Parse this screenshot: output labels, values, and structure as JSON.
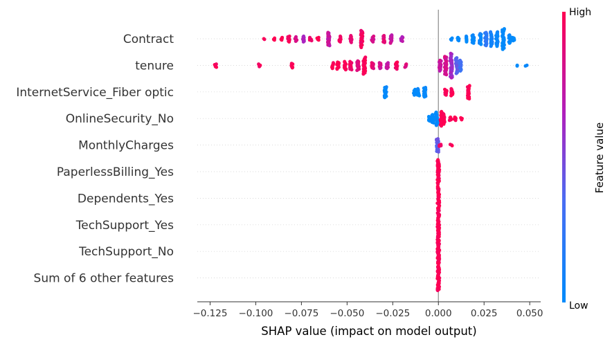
{
  "chart_data": {
    "type": "scatter",
    "subtype": "shap-beeswarm",
    "xlabel": "SHAP value (impact on model output)",
    "xlim": [
      -0.132,
      0.056
    ],
    "xticks": [
      -0.125,
      -0.1,
      -0.075,
      -0.05,
      -0.025,
      0.0,
      0.025,
      0.05
    ],
    "xtick_labels": [
      "−0.125",
      "−0.100",
      "−0.075",
      "−0.050",
      "−0.025",
      "0.000",
      "0.025",
      "0.050"
    ],
    "features": [
      "Contract",
      "tenure",
      "InternetService_Fiber optic",
      "OnlineSecurity_No",
      "MonthlyCharges",
      "PaperlessBilling_Yes",
      "Dependents_Yes",
      "TechSupport_Yes",
      "TechSupport_No",
      "Sum of 6 other features"
    ],
    "colorbar": {
      "title": "Feature value",
      "high_label": "High",
      "low_label": "Low"
    },
    "colors": {
      "low": "#008bfb",
      "high": "#ff0052",
      "baseline": "#999999",
      "grid": "#cccccc"
    },
    "point_groups": [
      {
        "feature": "Contract",
        "x": -0.095,
        "n": 2,
        "v": 1.0
      },
      {
        "feature": "Contract",
        "x": -0.09,
        "n": 4,
        "v": 1.0
      },
      {
        "feature": "Contract",
        "x": -0.086,
        "n": 5,
        "v": 1.0
      },
      {
        "feature": "Contract",
        "x": -0.082,
        "n": 10,
        "v": 0.95
      },
      {
        "feature": "Contract",
        "x": -0.078,
        "n": 8,
        "v": 0.85
      },
      {
        "feature": "Contract",
        "x": -0.074,
        "n": 10,
        "v": 0.65
      },
      {
        "feature": "Contract",
        "x": -0.07,
        "n": 6,
        "v": 0.95
      },
      {
        "feature": "Contract",
        "x": -0.066,
        "n": 5,
        "v": 1.0
      },
      {
        "feature": "Contract",
        "x": -0.06,
        "n": 22,
        "v": 0.75
      },
      {
        "feature": "Contract",
        "x": -0.054,
        "n": 10,
        "v": 0.95
      },
      {
        "feature": "Contract",
        "x": -0.048,
        "n": 12,
        "v": 0.9
      },
      {
        "feature": "Contract",
        "x": -0.042,
        "n": 28,
        "v": 0.95
      },
      {
        "feature": "Contract",
        "x": -0.036,
        "n": 10,
        "v": 0.8
      },
      {
        "feature": "Contract",
        "x": -0.03,
        "n": 12,
        "v": 0.85
      },
      {
        "feature": "Contract",
        "x": -0.026,
        "n": 14,
        "v": 0.75
      },
      {
        "feature": "Contract",
        "x": -0.02,
        "n": 8,
        "v": 0.7
      },
      {
        "feature": "Contract",
        "x": 0.007,
        "n": 4,
        "v": 0.0
      },
      {
        "feature": "Contract",
        "x": 0.011,
        "n": 6,
        "v": 0.0
      },
      {
        "feature": "Contract",
        "x": 0.015,
        "n": 10,
        "v": 0.0
      },
      {
        "feature": "Contract",
        "x": 0.019,
        "n": 14,
        "v": 0.02
      },
      {
        "feature": "Contract",
        "x": 0.023,
        "n": 18,
        "v": 0.05
      },
      {
        "feature": "Contract",
        "x": 0.026,
        "n": 22,
        "v": 0.2
      },
      {
        "feature": "Contract",
        "x": 0.029,
        "n": 24,
        "v": 0.1
      },
      {
        "feature": "Contract",
        "x": 0.032,
        "n": 24,
        "v": 0.05
      },
      {
        "feature": "Contract",
        "x": 0.0355,
        "n": 34,
        "v": 0.0
      },
      {
        "feature": "Contract",
        "x": 0.039,
        "n": 14,
        "v": 0.0
      },
      {
        "feature": "Contract",
        "x": 0.041,
        "n": 6,
        "v": 0.0
      },
      {
        "feature": "tenure",
        "x": -0.122,
        "n": 6,
        "v": 1.0
      },
      {
        "feature": "tenure",
        "x": -0.098,
        "n": 5,
        "v": 1.0
      },
      {
        "feature": "tenure",
        "x": -0.08,
        "n": 8,
        "v": 1.0
      },
      {
        "feature": "tenure",
        "x": -0.058,
        "n": 10,
        "v": 1.0
      },
      {
        "feature": "tenure",
        "x": -0.055,
        "n": 12,
        "v": 1.0
      },
      {
        "feature": "tenure",
        "x": -0.051,
        "n": 14,
        "v": 1.0
      },
      {
        "feature": "tenure",
        "x": -0.048,
        "n": 14,
        "v": 0.95
      },
      {
        "feature": "tenure",
        "x": -0.044,
        "n": 16,
        "v": 0.85
      },
      {
        "feature": "tenure",
        "x": -0.0405,
        "n": 28,
        "v": 1.0
      },
      {
        "feature": "tenure",
        "x": -0.036,
        "n": 10,
        "v": 0.9
      },
      {
        "feature": "tenure",
        "x": -0.032,
        "n": 10,
        "v": 0.8
      },
      {
        "feature": "tenure",
        "x": -0.028,
        "n": 10,
        "v": 0.75
      },
      {
        "feature": "tenure",
        "x": -0.023,
        "n": 12,
        "v": 0.95
      },
      {
        "feature": "tenure",
        "x": -0.018,
        "n": 6,
        "v": 0.85
      },
      {
        "feature": "tenure",
        "x": 0.001,
        "n": 18,
        "v": 0.75
      },
      {
        "feature": "tenure",
        "x": 0.004,
        "n": 30,
        "v": 0.8
      },
      {
        "feature": "tenure",
        "x": 0.007,
        "n": 40,
        "v": 0.6
      },
      {
        "feature": "tenure",
        "x": 0.01,
        "n": 26,
        "v": 0.4
      },
      {
        "feature": "tenure",
        "x": 0.012,
        "n": 18,
        "v": 0.3
      },
      {
        "feature": "tenure",
        "x": 0.043,
        "n": 2,
        "v": 0.0
      },
      {
        "feature": "tenure",
        "x": 0.048,
        "n": 2,
        "v": 0.0
      },
      {
        "feature": "InternetService_Fiber optic",
        "x": -0.029,
        "n": 18,
        "v": 0.0
      },
      {
        "feature": "InternetService_Fiber optic",
        "x": -0.013,
        "n": 10,
        "v": 0.0
      },
      {
        "feature": "InternetService_Fiber optic",
        "x": -0.011,
        "n": 12,
        "v": 0.0
      },
      {
        "feature": "InternetService_Fiber optic",
        "x": -0.0075,
        "n": 16,
        "v": 0.0
      },
      {
        "feature": "InternetService_Fiber optic",
        "x": 0.004,
        "n": 10,
        "v": 1.0
      },
      {
        "feature": "InternetService_Fiber optic",
        "x": 0.0075,
        "n": 12,
        "v": 1.0
      },
      {
        "feature": "InternetService_Fiber optic",
        "x": 0.0165,
        "n": 22,
        "v": 1.0
      },
      {
        "feature": "OnlineSecurity_No",
        "x": -0.005,
        "n": 8,
        "v": 0.0
      },
      {
        "feature": "OnlineSecurity_No",
        "x": -0.003,
        "n": 14,
        "v": 0.0
      },
      {
        "feature": "OnlineSecurity_No",
        "x": -0.001,
        "n": 22,
        "v": 0.0
      },
      {
        "feature": "OnlineSecurity_No",
        "x": 0.0015,
        "n": 24,
        "v": 1.0
      },
      {
        "feature": "OnlineSecurity_No",
        "x": 0.003,
        "n": 18,
        "v": 1.0
      },
      {
        "feature": "OnlineSecurity_No",
        "x": 0.0065,
        "n": 6,
        "v": 1.0
      },
      {
        "feature": "OnlineSecurity_No",
        "x": 0.009,
        "n": 6,
        "v": 1.0
      },
      {
        "feature": "OnlineSecurity_No",
        "x": 0.0125,
        "n": 4,
        "v": 1.0
      },
      {
        "feature": "MonthlyCharges",
        "x": -0.0005,
        "n": 22,
        "v": 0.4
      },
      {
        "feature": "MonthlyCharges",
        "x": 0.001,
        "n": 4,
        "v": 0.9
      },
      {
        "feature": "MonthlyCharges",
        "x": 0.007,
        "n": 3,
        "v": 1.0
      },
      {
        "feature": "PaperlessBilling_Yes",
        "x": 0.0,
        "n": 40,
        "v": 1.0
      },
      {
        "feature": "Dependents_Yes",
        "x": 0.0,
        "n": 40,
        "v": 1.0
      },
      {
        "feature": "TechSupport_Yes",
        "x": 0.0,
        "n": 40,
        "v": 1.0
      },
      {
        "feature": "TechSupport_No",
        "x": 0.0,
        "n": 40,
        "v": 1.0
      },
      {
        "feature": "Sum of 6 other features",
        "x": 0.0,
        "n": 40,
        "v": 1.0
      }
    ]
  }
}
